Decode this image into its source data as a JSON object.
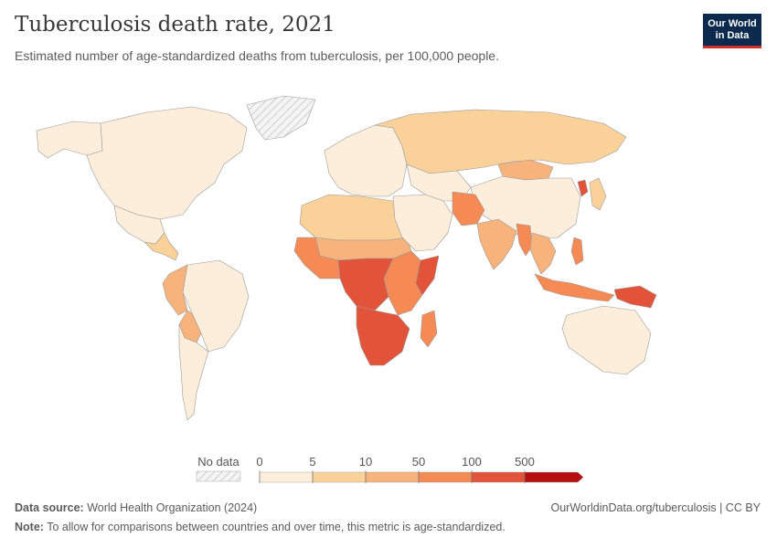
{
  "title": "Tuberculosis death rate, 2021",
  "subtitle": "Estimated number of age-standardized deaths from tuberculosis, per 100,000 people.",
  "logo": {
    "line1": "Our World",
    "line2": "in Data"
  },
  "legend": {
    "no_data_label": "No data",
    "thresholds": [
      "0",
      "5",
      "10",
      "50",
      "100",
      "500"
    ],
    "colors": [
      "#fdeedb",
      "#fbd19a",
      "#f8b27b",
      "#f58a55",
      "#e2533a",
      "#b60f0f"
    ]
  },
  "footer": {
    "source_label": "Data source:",
    "source": "World Health Organization (2024)",
    "url": "OurWorldinData.org/tuberculosis | CC BY",
    "note_label": "Note:",
    "note": "To allow for comparisons between countries and over time, this metric is age-standardized."
  },
  "map_regions": [
    {
      "name": "Canada & US",
      "bin": 0
    },
    {
      "name": "Alaska",
      "bin": 0
    },
    {
      "name": "Greenland",
      "bin": -1
    },
    {
      "name": "Mexico",
      "bin": 0
    },
    {
      "name": "Central America",
      "bin": 1
    },
    {
      "name": "Brazil",
      "bin": 0
    },
    {
      "name": "Peru",
      "bin": 2
    },
    {
      "name": "Bolivia",
      "bin": 2
    },
    {
      "name": "Argentina & Chile",
      "bin": 0
    },
    {
      "name": "Europe",
      "bin": 0
    },
    {
      "name": "Russia",
      "bin": 1
    },
    {
      "name": "Central Asia",
      "bin": 0
    },
    {
      "name": "China",
      "bin": 0
    },
    {
      "name": "Mongolia",
      "bin": 2
    },
    {
      "name": "India",
      "bin": 2
    },
    {
      "name": "Afghanistan & Pakistan",
      "bin": 3
    },
    {
      "name": "Myanmar",
      "bin": 3
    },
    {
      "name": "Southeast Asia",
      "bin": 2
    },
    {
      "name": "Philippines",
      "bin": 3
    },
    {
      "name": "Indonesia",
      "bin": 3
    },
    {
      "name": "Papua New Guinea",
      "bin": 4
    },
    {
      "name": "North Korea",
      "bin": 4
    },
    {
      "name": "North Africa",
      "bin": 1
    },
    {
      "name": "Sahel",
      "bin": 2
    },
    {
      "name": "West Africa",
      "bin": 3
    },
    {
      "name": "Central Africa",
      "bin": 4
    },
    {
      "name": "East Africa",
      "bin": 3
    },
    {
      "name": "Somalia",
      "bin": 4
    },
    {
      "name": "Southern Africa",
      "bin": 4
    },
    {
      "name": "Madagascar",
      "bin": 3
    },
    {
      "name": "Australia",
      "bin": 0
    },
    {
      "name": "Japan & Korea",
      "bin": 1
    },
    {
      "name": "Middle East",
      "bin": 0
    }
  ]
}
